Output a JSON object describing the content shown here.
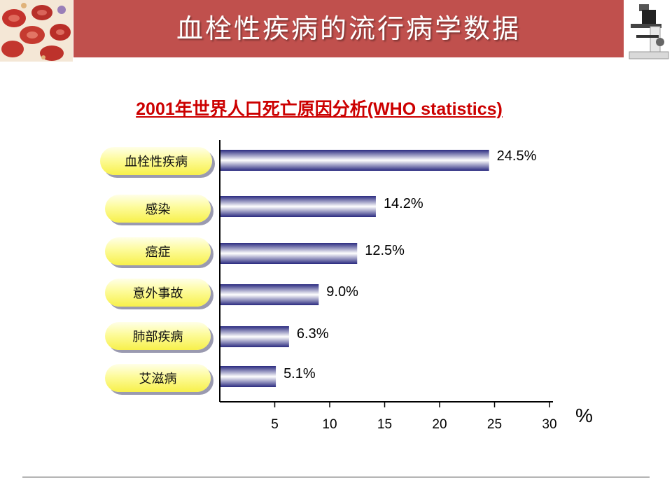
{
  "header": {
    "title": "血栓性疾病的流行病学数据",
    "color": "#c0504d"
  },
  "chart_data": {
    "type": "bar",
    "orientation": "horizontal",
    "title": "2001年世界人口死亡原因分析(WHO statistics)",
    "categories": [
      "血栓性疾病",
      "感染",
      "癌症",
      "意外事故",
      "肺部疾病",
      "艾滋病"
    ],
    "values": [
      24.5,
      14.2,
      12.5,
      9.0,
      6.3,
      5.1
    ],
    "value_labels": [
      "24.5%",
      "14.2%",
      "12.5%",
      "9.0%",
      "6.3%",
      "5.1%"
    ],
    "xlim": [
      0,
      30
    ],
    "xticks": [
      5,
      10,
      15,
      20,
      25,
      30
    ],
    "xlabel": "%",
    "bar_color": "#2b2b80",
    "title_color": "#cc0000"
  }
}
